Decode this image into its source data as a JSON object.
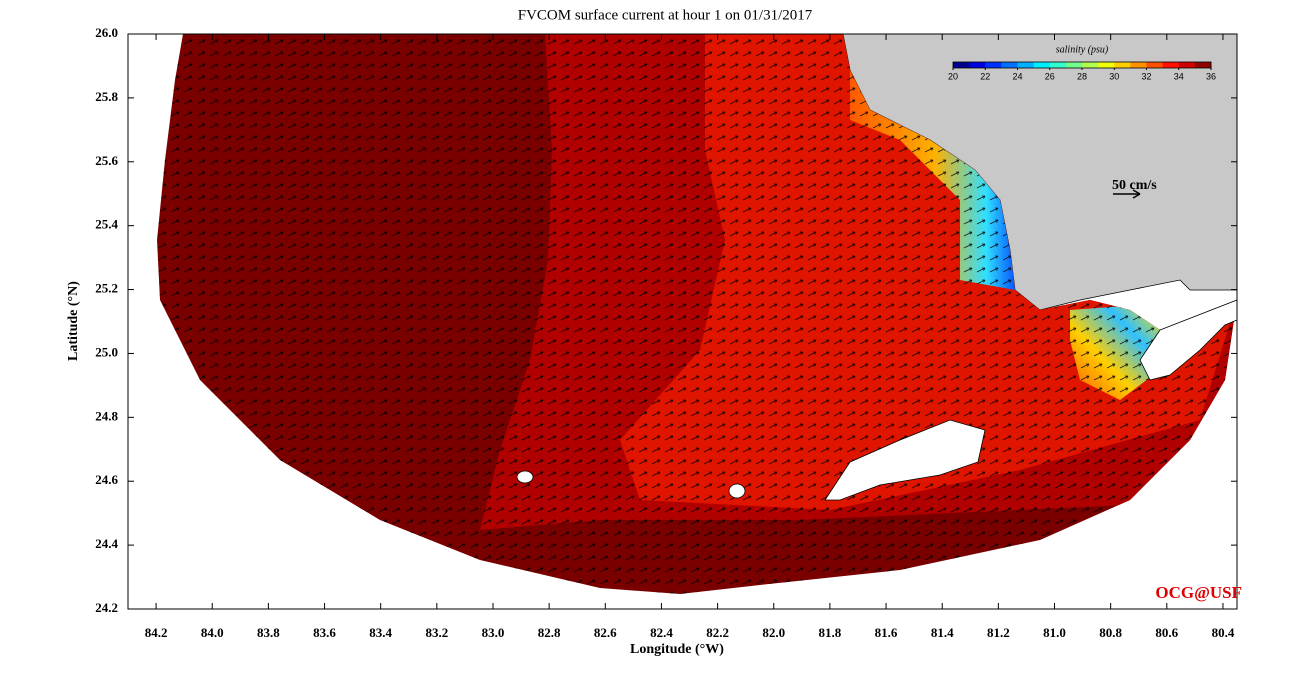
{
  "chart_data": {
    "type": "map",
    "title": "FVCOM surface current at hour 1 on 01/31/2017",
    "x_label": "Longitude (°W)",
    "y_label": "Latitude (°N)",
    "xlim": [
      84.3,
      80.35
    ],
    "ylim": [
      24.2,
      26.0
    ],
    "xticks": [
      84.2,
      {
        "value": 84,
        "label": "84.0"
      },
      83.8,
      83.6,
      83.4,
      83.2,
      {
        "value": 83,
        "label": "83.0"
      },
      82.8,
      82.6,
      82.4,
      82.2,
      {
        "value": 82,
        "label": "82.0"
      },
      81.8,
      81.6,
      81.4,
      81.2,
      {
        "value": 81,
        "label": "81.0"
      },
      80.8,
      80.6,
      80.4
    ],
    "yticks": [
      24.2,
      24.4,
      24.6,
      24.8,
      {
        "value": 25,
        "label": "25.0"
      },
      25.2,
      25.4,
      25.6,
      25.8,
      {
        "value": 26,
        "label": "26.0"
      }
    ],
    "colorbar": {
      "label": "salinity (psu)",
      "lim": [
        20,
        36
      ],
      "ticks": [
        20,
        22,
        24,
        26,
        28,
        30,
        32,
        34,
        36
      ],
      "colors": [
        "#00008f",
        "#0000df",
        "#0030ff",
        "#0070ff",
        "#00afff",
        "#00efff",
        "#30ffcf",
        "#70ff8f",
        "#afff50",
        "#efff10",
        "#ffcf00",
        "#ff9000",
        "#ff5000",
        "#ff1000",
        "#cf0000",
        "#8f0000"
      ]
    },
    "scale_label": "50 cm/s",
    "credit": "OCG@USF"
  }
}
